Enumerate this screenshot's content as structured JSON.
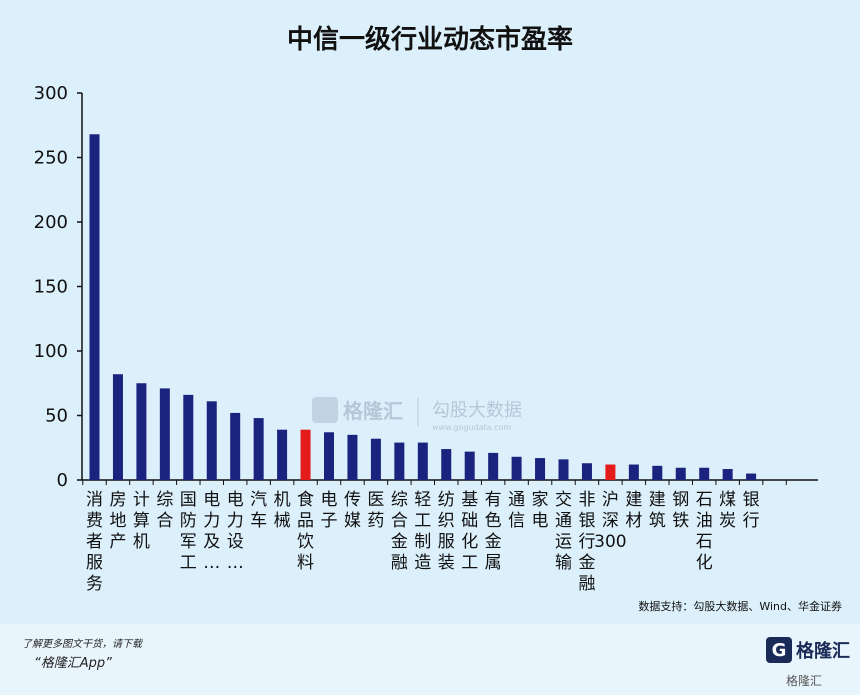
{
  "chart_data": {
    "type": "bar",
    "title": "中信一级行业动态市盈率",
    "ylim": [
      0,
      300
    ],
    "yticks": [
      0,
      50,
      100,
      150,
      200,
      250,
      300
    ],
    "categories": [
      "消费者服务",
      "房地产",
      "计算机",
      "综合",
      "国防军工",
      "电力及…",
      "电力设…",
      "汽车",
      "机械",
      "食品饮料",
      "电子",
      "传媒",
      "医药",
      "综合金融",
      "轻工制造",
      "纺织服装",
      "基础化工",
      "有色金属",
      "通信",
      "家电",
      "交通运输",
      "非银行金融",
      "沪深300",
      "建材",
      "建筑",
      "钢铁",
      "石油石化",
      "煤炭",
      "银行"
    ],
    "values": [
      268,
      82,
      75,
      71,
      66,
      61,
      52,
      48,
      39,
      39,
      37,
      35,
      32,
      29,
      29,
      24,
      22,
      21,
      18,
      17,
      16,
      13,
      12,
      12,
      11,
      9.5,
      9.5,
      8.5,
      5
    ],
    "highlight_indices": [
      9,
      22
    ],
    "bar_color": "#1a237e",
    "highlight_color": "#e31b1b",
    "grid": false
  },
  "source_note": "数据支持：勾股大数据、Wind、华金证券",
  "watermark": {
    "brand": "格隆汇",
    "divider_text": "勾股大数据",
    "url": "www.gogudata.com"
  },
  "footer": {
    "small_text": "了解更多图文干货，请下载",
    "app_text": "“格隆汇App”",
    "brand_letter": "G",
    "brand_name": "格隆汇",
    "corner_mark": "格隆汇"
  }
}
